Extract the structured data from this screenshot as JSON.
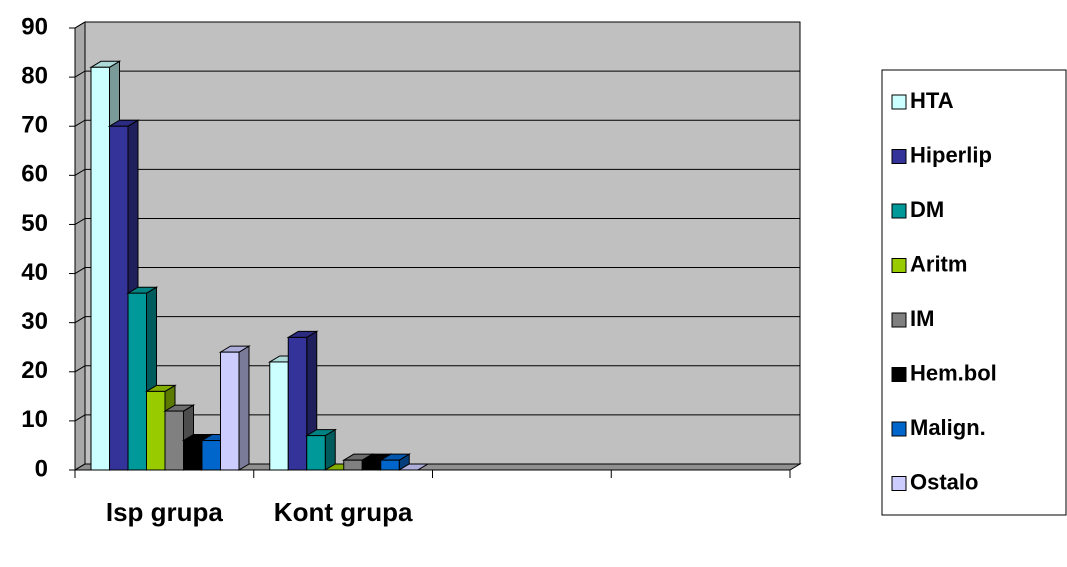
{
  "chart_data": {
    "type": "bar3d",
    "categories": [
      "Isp grupa",
      "Kont grupa",
      null,
      null
    ],
    "series": [
      {
        "name": "HTA",
        "color": "#ccffff",
        "values": [
          82,
          22,
          null,
          null
        ]
      },
      {
        "name": "Hiperlip",
        "color": "#333399",
        "values": [
          70,
          27,
          null,
          null
        ]
      },
      {
        "name": "DM",
        "color": "#009999",
        "values": [
          36,
          7,
          null,
          null
        ]
      },
      {
        "name": "Aritm",
        "color": "#99cc00",
        "values": [
          16,
          0,
          null,
          null
        ]
      },
      {
        "name": "IM",
        "color": "#808080",
        "values": [
          12,
          2,
          null,
          null
        ]
      },
      {
        "name": "Hem.bol",
        "color": "#000000",
        "values": [
          6,
          2,
          null,
          null
        ]
      },
      {
        "name": "Malign.",
        "color": "#0066cc",
        "values": [
          6,
          2,
          null,
          null
        ]
      },
      {
        "name": "Ostalo",
        "color": "#ccccff",
        "values": [
          24,
          0,
          null,
          null
        ]
      }
    ],
    "ylim": [
      0,
      90
    ],
    "yticks": [
      0,
      10,
      20,
      30,
      40,
      50,
      60,
      70,
      80,
      90
    ],
    "grid": true,
    "legend": "right"
  }
}
